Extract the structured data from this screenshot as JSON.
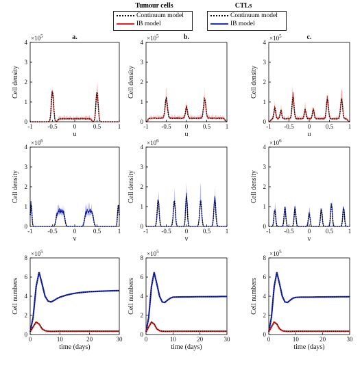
{
  "legends": [
    {
      "title": "Tumour cells",
      "items": [
        {
          "label": "Continuum model",
          "style": "dotted",
          "color": "#000000"
        },
        {
          "label": "IB model",
          "style": "solid",
          "color": "#e8201b"
        }
      ]
    },
    {
      "title": "CTLs",
      "items": [
        {
          "label": "Continuum model",
          "style": "dotted",
          "color": "#000000"
        },
        {
          "label": "IB model",
          "style": "solid",
          "color": "#1f2fc8"
        }
      ]
    }
  ],
  "chart_data": [
    {
      "type": "line",
      "panel_label": "a.",
      "xlabel": "u",
      "ylabel": "Cell density",
      "exponent": "×10^5",
      "xlim": [
        -1,
        1
      ],
      "ylim": [
        0,
        4
      ],
      "xticks": [
        "-1",
        "-0.5",
        "0",
        "0.5",
        "1"
      ],
      "yticks": [
        "0",
        "1",
        "2",
        "3",
        "4"
      ],
      "color": "#e8201b",
      "peaks": [
        {
          "x": -0.5,
          "height": 1.5,
          "width": 0.035
        },
        {
          "x": 0.5,
          "height": 1.5,
          "width": 0.035
        }
      ],
      "plateaus": [
        {
          "from": -0.38,
          "to": 0.38,
          "height": 0.15
        }
      ]
    },
    {
      "type": "line",
      "panel_label": "b.",
      "xlabel": "u",
      "ylabel": "Cell density",
      "exponent": "×10^5",
      "xlim": [
        -1,
        1
      ],
      "ylim": [
        0,
        4
      ],
      "xticks": [
        "-1",
        "-0.5",
        "0",
        "0.5",
        "1"
      ],
      "yticks": [
        "0",
        "1",
        "2",
        "3",
        "4"
      ],
      "color": "#e8201b",
      "peaks": [
        {
          "x": -0.5,
          "height": 1.0,
          "width": 0.04
        },
        {
          "x": 0.0,
          "height": 0.55,
          "width": 0.035
        },
        {
          "x": 0.45,
          "height": 0.95,
          "width": 0.04
        }
      ],
      "plateaus": [
        {
          "from": -0.95,
          "to": 0.95,
          "height": 0.18
        }
      ]
    },
    {
      "type": "line",
      "panel_label": "c.",
      "xlabel": "u",
      "ylabel": "Cell density",
      "exponent": "×10^5",
      "xlim": [
        -1,
        1
      ],
      "ylim": [
        0,
        4
      ],
      "xticks": [
        "-1",
        "-0.5",
        "0",
        "0.5",
        "1"
      ],
      "yticks": [
        "0",
        "1",
        "2",
        "3",
        "4"
      ],
      "color": "#e8201b",
      "peaks": [
        {
          "x": -0.85,
          "height": 0.55,
          "width": 0.03
        },
        {
          "x": -0.7,
          "height": 0.4,
          "width": 0.03
        },
        {
          "x": -0.4,
          "height": 1.1,
          "width": 0.035
        },
        {
          "x": -0.1,
          "height": 0.45,
          "width": 0.03
        },
        {
          "x": 0.1,
          "height": 0.45,
          "width": 0.03
        },
        {
          "x": 0.45,
          "height": 1.0,
          "width": 0.035
        },
        {
          "x": 0.8,
          "height": 1.0,
          "width": 0.035
        }
      ],
      "plateaus": [
        {
          "from": -0.95,
          "to": 0.95,
          "height": 0.15
        }
      ]
    },
    {
      "type": "line",
      "xlabel": "v",
      "ylabel": "Cell density",
      "exponent": "×10^6",
      "xlim": [
        -1,
        1
      ],
      "ylim": [
        0,
        4
      ],
      "xticks": [
        "-1",
        "-0.5",
        "0",
        "0.5",
        "1"
      ],
      "yticks": [
        "0",
        "1",
        "2",
        "3",
        "4"
      ],
      "color": "#1f2fc8",
      "peaks": [
        {
          "x": -0.98,
          "height": 1.1,
          "width": 0.025
        },
        {
          "x": 0.98,
          "height": 1.1,
          "width": 0.025
        }
      ],
      "plateaus": [
        {
          "from": -0.42,
          "to": -0.22,
          "height": 0.75
        },
        {
          "from": 0.22,
          "to": 0.42,
          "height": 0.75
        }
      ]
    },
    {
      "type": "line",
      "xlabel": "v",
      "ylabel": "Cell density",
      "exponent": "×10^6",
      "xlim": [
        -1,
        1
      ],
      "ylim": [
        0,
        4
      ],
      "xticks": [
        "-1",
        "-0.5",
        "0",
        "0.5",
        "1"
      ],
      "yticks": [
        "0",
        "1",
        "2",
        "3",
        "4"
      ],
      "color": "#1f2fc8",
      "peaks": [
        {
          "x": -0.7,
          "height": 1.3,
          "width": 0.035
        },
        {
          "x": -0.3,
          "height": 1.3,
          "width": 0.035
        },
        {
          "x": 0.0,
          "height": 1.5,
          "width": 0.03
        },
        {
          "x": 0.35,
          "height": 1.3,
          "width": 0.035
        },
        {
          "x": 0.7,
          "height": 1.3,
          "width": 0.035
        }
      ],
      "plateaus": []
    },
    {
      "type": "line",
      "xlabel": "v",
      "ylabel": "Cell density",
      "exponent": "×10^6",
      "xlim": [
        -1,
        1
      ],
      "ylim": [
        0,
        4
      ],
      "xticks": [
        "-1",
        "-0.5",
        "0",
        "0.5",
        "1"
      ],
      "yticks": [
        "0",
        "1",
        "2",
        "3",
        "4"
      ],
      "color": "#1f2fc8",
      "peaks": [
        {
          "x": -0.85,
          "height": 0.8,
          "width": 0.03
        },
        {
          "x": -0.6,
          "height": 0.9,
          "width": 0.03
        },
        {
          "x": -0.35,
          "height": 0.9,
          "width": 0.03
        },
        {
          "x": 0.0,
          "height": 0.65,
          "width": 0.03
        },
        {
          "x": 0.3,
          "height": 0.85,
          "width": 0.03
        },
        {
          "x": 0.55,
          "height": 1.1,
          "width": 0.03
        },
        {
          "x": 0.85,
          "height": 0.9,
          "width": 0.03
        }
      ],
      "plateaus": []
    },
    {
      "type": "line",
      "xlabel": "time (days)",
      "ylabel": "Cell numbers",
      "exponent": "×10^5",
      "xlim": [
        0,
        30
      ],
      "ylim": [
        0,
        8
      ],
      "xticks": [
        "0",
        "10",
        "20",
        "30"
      ],
      "yticks": [
        "0",
        "2",
        "4",
        "6",
        "8"
      ],
      "ctl_curve": {
        "t": [
          0,
          1,
          2,
          3,
          4,
          5,
          6,
          7,
          8,
          9,
          10,
          12,
          14,
          16,
          18,
          20,
          22,
          24,
          26,
          28,
          30
        ],
        "y": [
          0.3,
          1.8,
          5.0,
          6.5,
          5.3,
          4.0,
          3.5,
          3.4,
          3.55,
          3.75,
          3.9,
          4.1,
          4.25,
          4.35,
          4.42,
          4.47,
          4.5,
          4.53,
          4.55,
          4.57,
          4.58
        ]
      },
      "tumour_curve": {
        "t": [
          0,
          1,
          2,
          3,
          4,
          5,
          6,
          7,
          8,
          10,
          14,
          20,
          25,
          30
        ],
        "y": [
          0.3,
          0.8,
          1.3,
          1.1,
          0.6,
          0.4,
          0.35,
          0.33,
          0.33,
          0.35,
          0.35,
          0.35,
          0.35,
          0.35
        ]
      }
    },
    {
      "type": "line",
      "xlabel": "time (days)",
      "ylabel": "Cell numbers",
      "exponent": "×10^5",
      "xlim": [
        0,
        30
      ],
      "ylim": [
        0,
        8
      ],
      "xticks": [
        "0",
        "10",
        "20",
        "30"
      ],
      "yticks": [
        "0",
        "2",
        "4",
        "6",
        "8"
      ],
      "ctl_curve": {
        "t": [
          0,
          1,
          2,
          3,
          4,
          5,
          6,
          7,
          8,
          9,
          10,
          12,
          14,
          16,
          18,
          20,
          22,
          24,
          26,
          28,
          30
        ],
        "y": [
          0.3,
          1.8,
          5.0,
          6.5,
          5.3,
          4.0,
          3.4,
          3.35,
          3.6,
          3.8,
          3.9,
          3.92,
          3.93,
          3.93,
          3.94,
          3.95,
          3.95,
          3.96,
          3.96,
          3.97,
          3.97
        ]
      },
      "tumour_curve": {
        "t": [
          0,
          1,
          2,
          3,
          4,
          5,
          6,
          7,
          8,
          10,
          14,
          20,
          25,
          30
        ],
        "y": [
          0.3,
          0.8,
          1.3,
          1.1,
          0.6,
          0.4,
          0.35,
          0.33,
          0.33,
          0.34,
          0.34,
          0.34,
          0.34,
          0.34
        ]
      }
    },
    {
      "type": "line",
      "xlabel": "time (days)",
      "ylabel": "Cell numbers",
      "exponent": "×10^5",
      "xlim": [
        0,
        30
      ],
      "ylim": [
        0,
        8
      ],
      "xticks": [
        "0",
        "10",
        "20",
        "30"
      ],
      "yticks": [
        "0",
        "2",
        "4",
        "6",
        "8"
      ],
      "ctl_curve": {
        "t": [
          0,
          1,
          2,
          3,
          4,
          5,
          6,
          7,
          8,
          9,
          10,
          12,
          14,
          16,
          18,
          20,
          22,
          24,
          26,
          28,
          30
        ],
        "y": [
          0.3,
          1.8,
          5.0,
          6.5,
          5.3,
          4.0,
          3.4,
          3.35,
          3.6,
          3.8,
          3.88,
          3.9,
          3.9,
          3.91,
          3.92,
          3.92,
          3.93,
          3.93,
          3.94,
          3.94,
          3.95
        ]
      },
      "tumour_curve": {
        "t": [
          0,
          1,
          2,
          3,
          4,
          5,
          6,
          7,
          8,
          10,
          14,
          20,
          25,
          30
        ],
        "y": [
          0.3,
          0.8,
          1.3,
          1.1,
          0.6,
          0.4,
          0.35,
          0.33,
          0.33,
          0.34,
          0.34,
          0.34,
          0.34,
          0.34
        ]
      }
    }
  ]
}
